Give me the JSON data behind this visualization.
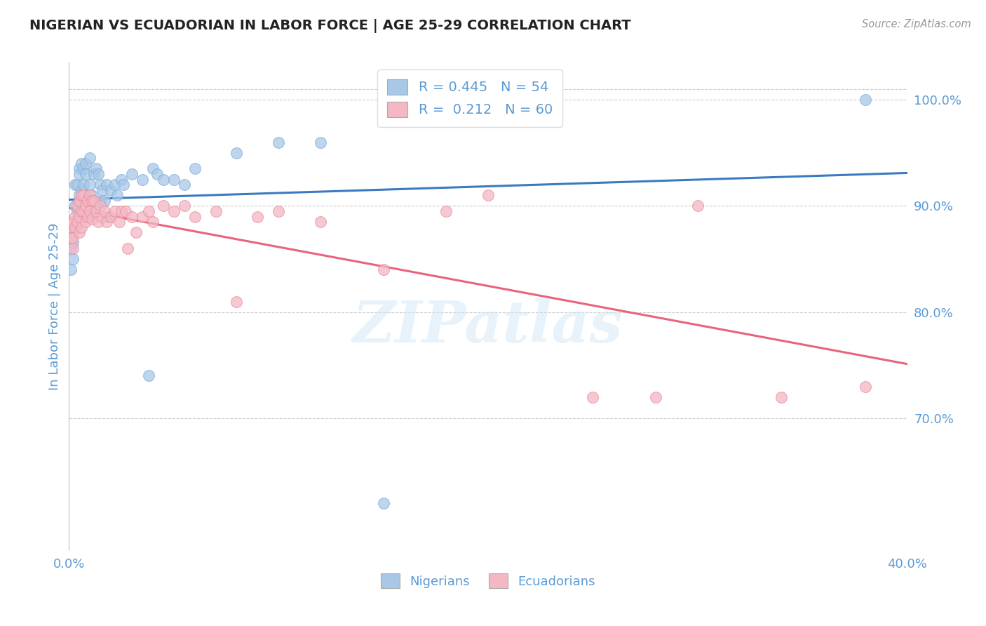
{
  "title": "NIGERIAN VS ECUADORIAN IN LABOR FORCE | AGE 25-29 CORRELATION CHART",
  "source": "Source: ZipAtlas.com",
  "ylabel": "In Labor Force | Age 25-29",
  "xlim": [
    0.0,
    0.4
  ],
  "ylim": [
    0.575,
    1.035
  ],
  "legend_r1": "R = 0.445",
  "legend_n1": "N = 54",
  "legend_r2": "R =  0.212",
  "legend_n2": "N = 60",
  "blue_color": "#a8c8e8",
  "pink_color": "#f4b8c4",
  "blue_line_color": "#3a7bbf",
  "pink_line_color": "#e8647a",
  "title_color": "#222222",
  "tick_label_color": "#5b9bd5",
  "watermark": "ZIPatlas",
  "nigerians_x": [
    0.001,
    0.001,
    0.001,
    0.002,
    0.002,
    0.002,
    0.003,
    0.003,
    0.004,
    0.004,
    0.005,
    0.005,
    0.005,
    0.006,
    0.006,
    0.007,
    0.007,
    0.007,
    0.008,
    0.008,
    0.008,
    0.009,
    0.01,
    0.01,
    0.011,
    0.012,
    0.012,
    0.013,
    0.014,
    0.015,
    0.015,
    0.016,
    0.017,
    0.018,
    0.019,
    0.02,
    0.022,
    0.023,
    0.025,
    0.026,
    0.03,
    0.035,
    0.038,
    0.04,
    0.042,
    0.045,
    0.05,
    0.055,
    0.06,
    0.08,
    0.1,
    0.12,
    0.15,
    0.38
  ],
  "nigerians_y": [
    0.87,
    0.86,
    0.84,
    0.875,
    0.865,
    0.85,
    0.92,
    0.9,
    0.92,
    0.895,
    0.935,
    0.93,
    0.91,
    0.94,
    0.915,
    0.935,
    0.92,
    0.9,
    0.94,
    0.93,
    0.91,
    0.89,
    0.945,
    0.92,
    0.91,
    0.93,
    0.9,
    0.935,
    0.93,
    0.92,
    0.905,
    0.915,
    0.905,
    0.92,
    0.89,
    0.915,
    0.92,
    0.91,
    0.925,
    0.92,
    0.93,
    0.925,
    0.74,
    0.935,
    0.93,
    0.925,
    0.925,
    0.92,
    0.935,
    0.95,
    0.96,
    0.96,
    0.62,
    1.0
  ],
  "ecuadorians_x": [
    0.001,
    0.001,
    0.002,
    0.002,
    0.002,
    0.003,
    0.003,
    0.004,
    0.004,
    0.005,
    0.005,
    0.005,
    0.006,
    0.006,
    0.006,
    0.007,
    0.007,
    0.008,
    0.008,
    0.009,
    0.009,
    0.01,
    0.01,
    0.011,
    0.011,
    0.012,
    0.013,
    0.014,
    0.015,
    0.016,
    0.017,
    0.018,
    0.02,
    0.022,
    0.024,
    0.025,
    0.027,
    0.028,
    0.03,
    0.032,
    0.035,
    0.038,
    0.04,
    0.045,
    0.05,
    0.055,
    0.06,
    0.07,
    0.08,
    0.09,
    0.1,
    0.12,
    0.15,
    0.18,
    0.2,
    0.25,
    0.28,
    0.3,
    0.34,
    0.38
  ],
  "ecuadorians_y": [
    0.88,
    0.87,
    0.885,
    0.87,
    0.86,
    0.89,
    0.88,
    0.9,
    0.885,
    0.905,
    0.89,
    0.875,
    0.91,
    0.895,
    0.88,
    0.91,
    0.895,
    0.9,
    0.885,
    0.905,
    0.89,
    0.91,
    0.895,
    0.905,
    0.888,
    0.905,
    0.895,
    0.885,
    0.9,
    0.89,
    0.895,
    0.885,
    0.89,
    0.895,
    0.885,
    0.895,
    0.895,
    0.86,
    0.89,
    0.875,
    0.89,
    0.895,
    0.885,
    0.9,
    0.895,
    0.9,
    0.89,
    0.895,
    0.81,
    0.89,
    0.895,
    0.885,
    0.84,
    0.895,
    0.91,
    0.72,
    0.72,
    0.9,
    0.72,
    0.73
  ]
}
